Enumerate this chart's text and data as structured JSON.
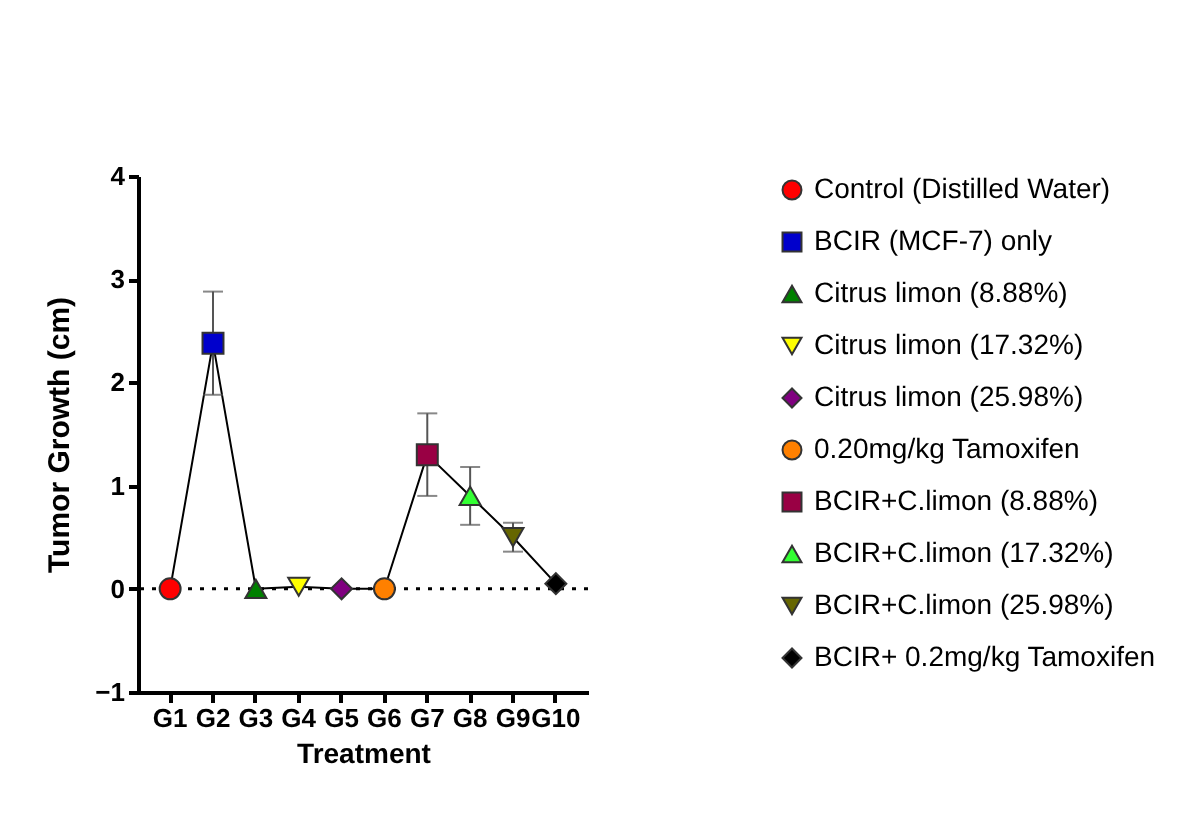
{
  "chart_data": {
    "type": "scatter",
    "xlabel": "Treatment",
    "ylabel": "Tumor Growth (cm)",
    "categories": [
      "G1",
      "G2",
      "G3",
      "G4",
      "G5",
      "G6",
      "G7",
      "G8",
      "G9",
      "G10"
    ],
    "ylim": [
      -1,
      4
    ],
    "yticks": [
      -1,
      0,
      1,
      2,
      3,
      4
    ],
    "grid": false,
    "legend": "right",
    "ref_lines": [
      {
        "axis": "y",
        "value": 0,
        "line_style": "dotted",
        "color": "#000000"
      }
    ],
    "series": [
      {
        "type": "line",
        "color": "#000000",
        "marker": "none",
        "values": [
          0,
          2.38,
          0,
          0.02,
          0,
          0,
          1.3,
          0.9,
          0.5,
          0.05
        ],
        "errors": [
          null,
          0.5,
          null,
          null,
          null,
          null,
          0.4,
          0.28,
          0.14,
          null
        ]
      },
      {
        "name": "Control (Distilled Water)",
        "color": "#ff0000",
        "marker": "circle",
        "values": [
          0,
          null,
          null,
          null,
          null,
          null,
          null,
          null,
          null,
          null
        ]
      },
      {
        "name": "BCIR (MCF-7) only",
        "color": "#0000cc",
        "marker": "square",
        "values": [
          null,
          2.38,
          null,
          null,
          null,
          null,
          null,
          null,
          null,
          null
        ]
      },
      {
        "name": "Citrus limon (8.88%)",
        "color": "#008000",
        "marker": "triangle",
        "values": [
          null,
          null,
          0,
          null,
          null,
          null,
          null,
          null,
          null,
          null
        ]
      },
      {
        "name": "Citrus limon (17.32%)",
        "color": "#ffff00",
        "marker": "triangle_down",
        "values": [
          null,
          null,
          null,
          0.02,
          null,
          null,
          null,
          null,
          null,
          null
        ]
      },
      {
        "name": "Citrus limon (25.98%)",
        "color": "#800080",
        "marker": "diamond",
        "values": [
          null,
          null,
          null,
          null,
          0,
          null,
          null,
          null,
          null,
          null
        ]
      },
      {
        "name": "0.20mg/kg Tamoxifen",
        "color": "#ff8000",
        "marker": "circle",
        "values": [
          null,
          null,
          null,
          null,
          null,
          0,
          null,
          null,
          null,
          null
        ]
      },
      {
        "name": "BCIR+C.limon (8.88%)",
        "color": "#990044",
        "marker": "square",
        "values": [
          null,
          null,
          null,
          null,
          null,
          null,
          1.3,
          null,
          null,
          null
        ]
      },
      {
        "name": "BCIR+C.limon (17.32%)",
        "color": "#33ff33",
        "marker": "triangle",
        "values": [
          null,
          null,
          null,
          null,
          null,
          null,
          null,
          0.9,
          null,
          null
        ]
      },
      {
        "name": "BCIR+C.limon (25.98%)",
        "color": "#666600",
        "marker": "triangle_down",
        "values": [
          null,
          null,
          null,
          null,
          null,
          null,
          null,
          null,
          0.5,
          null
        ]
      },
      {
        "name": "BCIR+ 0.2mg/kg Tamoxifen",
        "color": "#000000",
        "marker": "diamond",
        "values": [
          null,
          null,
          null,
          null,
          null,
          null,
          null,
          null,
          null,
          0.05
        ]
      }
    ]
  }
}
